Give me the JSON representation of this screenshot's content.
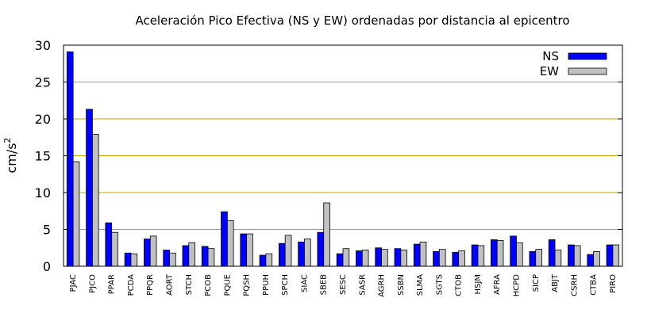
{
  "chart_data": {
    "type": "bar",
    "title": "Aceleración Pico Efectiva (NS y EW) ordenadas por distancia al epicentro",
    "ylabel": "cm/s",
    "ylabel_superscript": "2",
    "xlabel": "",
    "ylim": [
      0,
      30
    ],
    "yticks": [
      "0",
      "5",
      "10",
      "15",
      "20",
      "25",
      "30"
    ],
    "grid": "horizontal",
    "legend_position": "top-right",
    "colors": {
      "NS": "#0000ff",
      "EW": "#c0c0c0",
      "grid": "#c8a000",
      "axis": "#000000"
    },
    "categories": [
      "PJAC",
      "PJCO",
      "PPAR",
      "PCDA",
      "PPQR",
      "AORT",
      "STCH",
      "PCOB",
      "PQUE",
      "PQSH",
      "PPUH",
      "SPCH",
      "SIAC",
      "SBEB",
      "SESC",
      "SASR",
      "AGRH",
      "SSBN",
      "SLMA",
      "SGTS",
      "CTOB",
      "HSJM",
      "AFRA",
      "HCPD",
      "SICP",
      "ABJT",
      "CSRH",
      "CTBA",
      "PIRO"
    ],
    "series": [
      {
        "name": "NS",
        "values": [
          29.1,
          21.3,
          5.9,
          1.8,
          3.7,
          2.2,
          2.8,
          2.7,
          7.4,
          4.4,
          1.5,
          3.1,
          3.3,
          4.6,
          1.7,
          2.1,
          2.5,
          2.4,
          3.0,
          2.0,
          1.9,
          2.9,
          3.6,
          4.1,
          2.0,
          3.6,
          2.9,
          1.6,
          2.9
        ]
      },
      {
        "name": "EW",
        "values": [
          14.2,
          17.9,
          4.6,
          1.7,
          4.1,
          1.8,
          3.2,
          2.4,
          6.2,
          4.4,
          1.7,
          4.2,
          3.7,
          8.6,
          2.4,
          2.2,
          2.3,
          2.2,
          3.3,
          2.3,
          2.1,
          2.8,
          3.5,
          3.2,
          2.3,
          2.2,
          2.8,
          2.0,
          2.9
        ]
      }
    ]
  }
}
